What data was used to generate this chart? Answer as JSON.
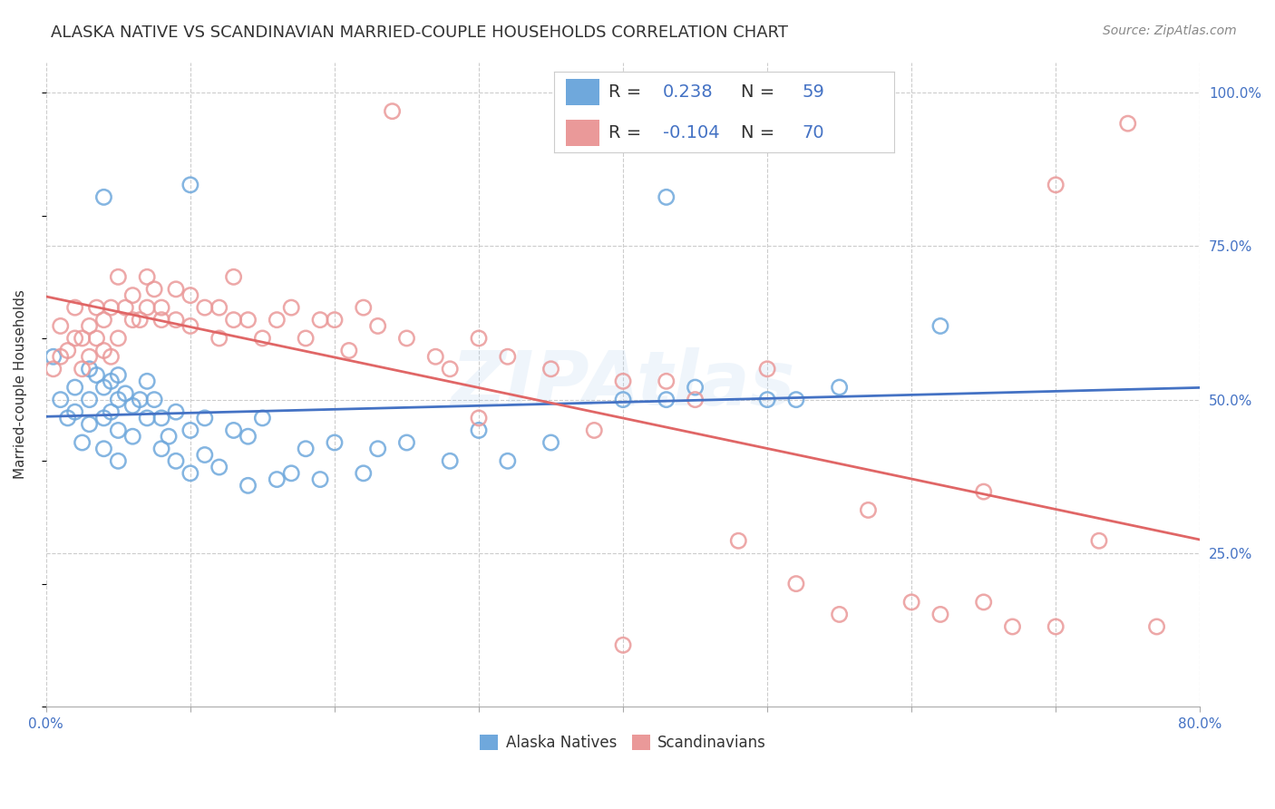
{
  "title": "ALASKA NATIVE VS SCANDINAVIAN MARRIED-COUPLE HOUSEHOLDS CORRELATION CHART",
  "source": "Source: ZipAtlas.com",
  "ylabel": "Married-couple Households",
  "ytick_labels": [
    "100.0%",
    "75.0%",
    "50.0%",
    "25.0%"
  ],
  "ytick_values": [
    1.0,
    0.75,
    0.5,
    0.25
  ],
  "xlim": [
    0.0,
    0.8
  ],
  "ylim": [
    0.0,
    1.05
  ],
  "blue_color": "#6fa8dc",
  "pink_color": "#ea9999",
  "blue_line_color": "#4472c4",
  "pink_line_color": "#e06666",
  "legend_label_blue": "Alaska Natives",
  "legend_label_pink": "Scandinavians",
  "r_blue": 0.238,
  "n_blue": 59,
  "r_pink": -0.104,
  "n_pink": 70,
  "title_fontsize": 13,
  "source_fontsize": 10,
  "label_fontsize": 11,
  "tick_fontsize": 11,
  "legend_fontsize": 14,
  "watermark": "ZIPAtlas",
  "background_color": "#ffffff",
  "grid_color": "#cccccc",
  "blue_scatter": {
    "x": [
      0.005,
      0.01,
      0.015,
      0.02,
      0.02,
      0.025,
      0.03,
      0.03,
      0.03,
      0.035,
      0.04,
      0.04,
      0.04,
      0.045,
      0.045,
      0.05,
      0.05,
      0.05,
      0.05,
      0.055,
      0.06,
      0.06,
      0.065,
      0.07,
      0.07,
      0.075,
      0.08,
      0.08,
      0.085,
      0.09,
      0.09,
      0.1,
      0.1,
      0.11,
      0.11,
      0.12,
      0.13,
      0.14,
      0.14,
      0.15,
      0.16,
      0.17,
      0.18,
      0.19,
      0.2,
      0.22,
      0.23,
      0.25,
      0.28,
      0.3,
      0.32,
      0.35,
      0.4,
      0.43,
      0.45,
      0.5,
      0.52,
      0.55,
      0.62
    ],
    "y": [
      0.57,
      0.5,
      0.47,
      0.52,
      0.48,
      0.43,
      0.55,
      0.5,
      0.46,
      0.54,
      0.52,
      0.47,
      0.42,
      0.53,
      0.48,
      0.54,
      0.5,
      0.45,
      0.4,
      0.51,
      0.49,
      0.44,
      0.5,
      0.53,
      0.47,
      0.5,
      0.47,
      0.42,
      0.44,
      0.48,
      0.4,
      0.45,
      0.38,
      0.47,
      0.41,
      0.39,
      0.45,
      0.44,
      0.36,
      0.47,
      0.37,
      0.38,
      0.42,
      0.37,
      0.43,
      0.38,
      0.42,
      0.43,
      0.4,
      0.45,
      0.4,
      0.43,
      0.5,
      0.5,
      0.52,
      0.5,
      0.5,
      0.52,
      0.62
    ]
  },
  "pink_scatter": {
    "x": [
      0.005,
      0.01,
      0.01,
      0.015,
      0.02,
      0.02,
      0.025,
      0.025,
      0.03,
      0.03,
      0.035,
      0.035,
      0.04,
      0.04,
      0.045,
      0.045,
      0.05,
      0.05,
      0.055,
      0.06,
      0.06,
      0.065,
      0.07,
      0.07,
      0.075,
      0.08,
      0.08,
      0.09,
      0.09,
      0.1,
      0.1,
      0.11,
      0.12,
      0.12,
      0.13,
      0.13,
      0.14,
      0.15,
      0.16,
      0.17,
      0.18,
      0.19,
      0.2,
      0.21,
      0.22,
      0.23,
      0.25,
      0.27,
      0.28,
      0.3,
      0.3,
      0.32,
      0.35,
      0.38,
      0.4,
      0.43,
      0.45,
      0.48,
      0.5,
      0.52,
      0.55,
      0.57,
      0.6,
      0.62,
      0.65,
      0.67,
      0.7,
      0.73,
      0.75,
      0.77
    ],
    "y": [
      0.55,
      0.57,
      0.62,
      0.58,
      0.6,
      0.65,
      0.55,
      0.6,
      0.57,
      0.62,
      0.6,
      0.65,
      0.58,
      0.63,
      0.57,
      0.65,
      0.6,
      0.7,
      0.65,
      0.63,
      0.67,
      0.63,
      0.65,
      0.7,
      0.68,
      0.65,
      0.63,
      0.68,
      0.63,
      0.67,
      0.62,
      0.65,
      0.65,
      0.6,
      0.63,
      0.7,
      0.63,
      0.6,
      0.63,
      0.65,
      0.6,
      0.63,
      0.63,
      0.58,
      0.65,
      0.62,
      0.6,
      0.57,
      0.55,
      0.6,
      0.47,
      0.57,
      0.55,
      0.45,
      0.53,
      0.53,
      0.5,
      0.27,
      0.55,
      0.2,
      0.15,
      0.32,
      0.17,
      0.15,
      0.35,
      0.13,
      0.13,
      0.27,
      0.95,
      0.13
    ]
  },
  "blue_extra": {
    "x": [
      0.04,
      0.1,
      0.43
    ],
    "y": [
      0.83,
      0.85,
      0.83
    ]
  },
  "pink_extra": {
    "x": [
      0.24,
      0.4,
      0.65,
      0.7
    ],
    "y": [
      0.97,
      0.1,
      0.17,
      0.85
    ]
  }
}
